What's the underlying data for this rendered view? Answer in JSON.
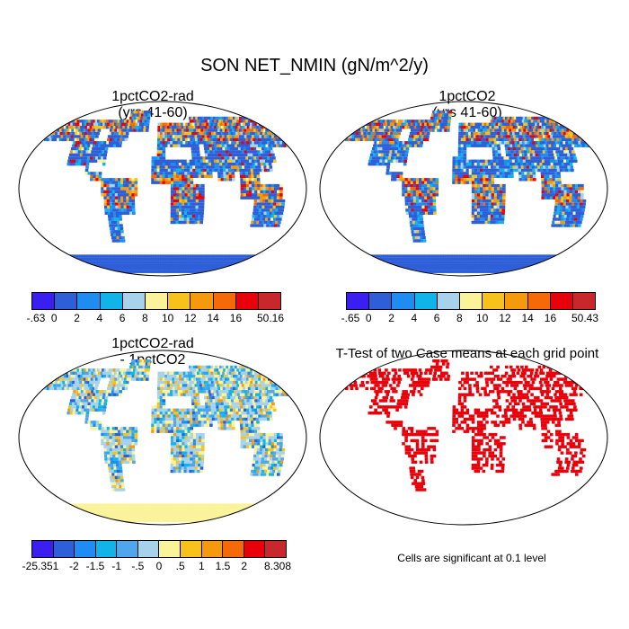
{
  "title": "SON NET_NMIN (gN/m^2/y)",
  "panels": [
    {
      "title_line1": "1pctCO2-rad",
      "title_line2": "(yrs 41-60)",
      "type": "field"
    },
    {
      "title_line1": "1pctCO2",
      "title_line2": "(yrs 41-60)",
      "type": "field"
    },
    {
      "title_line1": "1pctCO2-rad",
      "title_line2": "- 1pctCO2",
      "type": "difference"
    },
    {
      "title_line1": "T-Test of two Case means at each grid point",
      "title_line2": "",
      "type": "ttest"
    }
  ],
  "colorbars": {
    "field1": {
      "colors": [
        "#3b1ff0",
        "#2e5ed8",
        "#1e8cf0",
        "#10b4e8",
        "#a6d2ec",
        "#fbf39a",
        "#f8c21d",
        "#f59a0d",
        "#f56a08",
        "#e8000b",
        "#c8282b"
      ],
      "labels": [
        "-.63",
        "0",
        "2",
        "4",
        "6",
        "8",
        "10",
        "12",
        "14",
        "16",
        "50.16"
      ]
    },
    "field2": {
      "colors": [
        "#3b1ff0",
        "#2e5ed8",
        "#1e8cf0",
        "#10b4e8",
        "#a6d2ec",
        "#fbf39a",
        "#f8c21d",
        "#f59a0d",
        "#f56a08",
        "#e8000b",
        "#c8282b"
      ],
      "labels": [
        "-.65",
        "0",
        "2",
        "4",
        "6",
        "8",
        "10",
        "12",
        "14",
        "16",
        "50.43"
      ]
    },
    "diff": {
      "colors": [
        "#3b1ff0",
        "#2e5ed8",
        "#1e8cf0",
        "#10b4e8",
        "#4fa6ec",
        "#a6d2ec",
        "#fbf39a",
        "#f8c21d",
        "#f59a0d",
        "#f56a08",
        "#e8000b",
        "#c8282b"
      ],
      "labels": [
        "-25.351",
        "-2",
        "-1.5",
        "-1",
        "-.5",
        "0",
        ".5",
        "1",
        "1.5",
        "2",
        "8.308"
      ]
    }
  },
  "significance_note": "Cells are significant at 0.1 level",
  "ttest_color": "#e8000b"
}
